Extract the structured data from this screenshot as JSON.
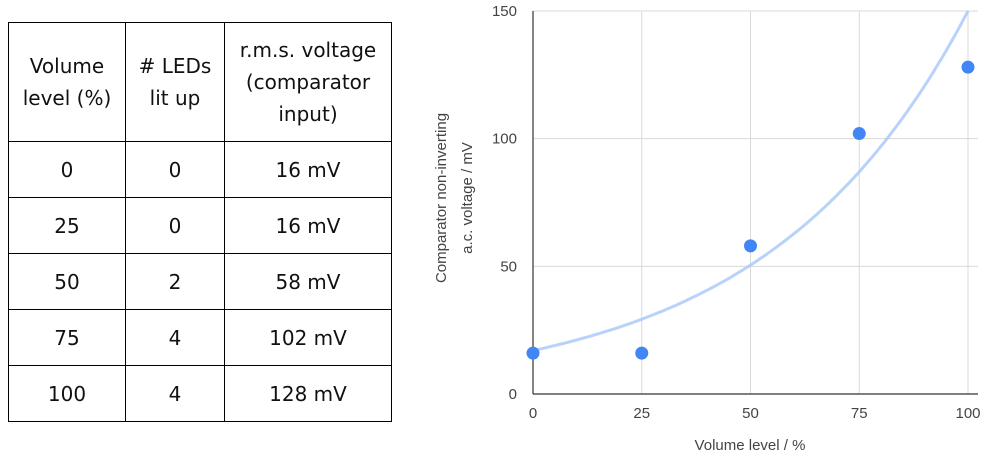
{
  "table": {
    "headers": [
      [
        "Volume",
        "level (%)"
      ],
      [
        "# LEDs",
        "lit up"
      ],
      [
        "r.m.s. voltage",
        "(comparator",
        "input)"
      ]
    ],
    "rows": [
      [
        "0",
        "0",
        "16 mV"
      ],
      [
        "25",
        "0",
        "16 mV"
      ],
      [
        "50",
        "2",
        "58 mV"
      ],
      [
        "75",
        "4",
        "102 mV"
      ],
      [
        "100",
        "4",
        "128 mV"
      ]
    ]
  },
  "chart_data": {
    "type": "scatter",
    "xlabel": "Volume level / %",
    "ylabel_lines": [
      "Comparator non-inverting",
      "a.c. voltage / mV"
    ],
    "xlim": [
      0,
      100
    ],
    "ylim": [
      0,
      150
    ],
    "x_ticks": [
      "0",
      "25",
      "50",
      "75",
      "100"
    ],
    "y_ticks": [
      "0",
      "50",
      "100",
      "150"
    ],
    "grid": true,
    "x": [
      0,
      25,
      50,
      75,
      100
    ],
    "y": [
      16,
      16,
      58,
      102,
      128
    ],
    "point_color": "#4285f4",
    "trendline": {
      "type": "exponential",
      "x": [
        0,
        25,
        50,
        75,
        100
      ],
      "y": [
        17,
        29,
        50,
        86,
        150
      ],
      "color": "#a8c7fa"
    }
  }
}
